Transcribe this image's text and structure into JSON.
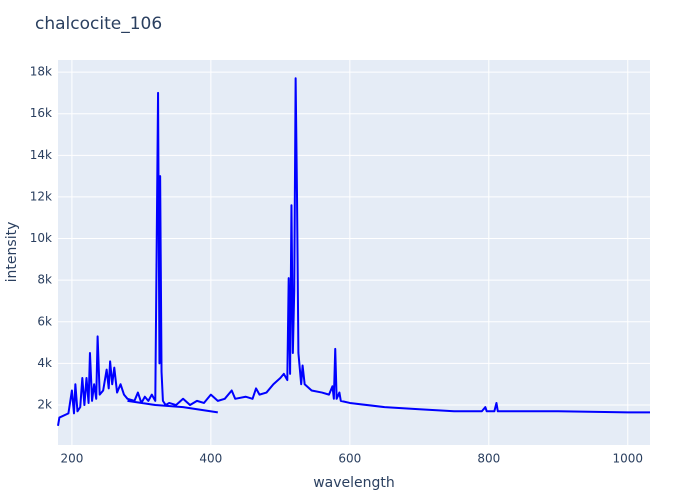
{
  "chart_data": {
    "type": "line",
    "title": "chalcocite_106",
    "x_label": "wavelength",
    "y_label": "intensity",
    "color": "#0000ff",
    "grid": true,
    "xlim": [
      180,
      1032
    ],
    "xticks": [
      200,
      400,
      600,
      800,
      1000
    ],
    "ylim": [
      80,
      18580
    ],
    "yticks": [
      {
        "value": 2000,
        "label": "2k"
      },
      {
        "value": 4000,
        "label": "4k"
      },
      {
        "value": 6000,
        "label": "6k"
      },
      {
        "value": 8000,
        "label": "8k"
      },
      {
        "value": 10000,
        "label": "10k"
      },
      {
        "value": 12000,
        "label": "12k"
      },
      {
        "value": 14000,
        "label": "14k"
      },
      {
        "value": 16000,
        "label": "16k"
      },
      {
        "value": 18000,
        "label": "18k"
      }
    ],
    "x": [
      180,
      182,
      195,
      200,
      203,
      205,
      208,
      212,
      215,
      218,
      221,
      224,
      226,
      229,
      232,
      235,
      237,
      240,
      245,
      250,
      253,
      255,
      258,
      261,
      265,
      270,
      275,
      280,
      290,
      295,
      300,
      305,
      310,
      315,
      320,
      324,
      326,
      327,
      329,
      331,
      335,
      340,
      350,
      360,
      370,
      380,
      390,
      400,
      410,
      420,
      430,
      435,
      450,
      460,
      465,
      470,
      480,
      490,
      500,
      505,
      510,
      512,
      514,
      516,
      518,
      520,
      522,
      524,
      526,
      530,
      532,
      535,
      545,
      560,
      570,
      575,
      577,
      579,
      581,
      585,
      587,
      600,
      650,
      700,
      750,
      790,
      795,
      797,
      808,
      811,
      813,
      900,
      1000,
      1032,
      1032,
      280,
      320,
      360,
      410
    ],
    "values": [
      1000,
      1400,
      1600,
      2700,
      1600,
      3000,
      1700,
      1900,
      3300,
      2000,
      3300,
      2100,
      4500,
      2200,
      3000,
      2300,
      5300,
      2500,
      2700,
      3700,
      2800,
      4100,
      3000,
      3800,
      2600,
      3000,
      2500,
      2300,
      2200,
      2600,
      2100,
      2400,
      2200,
      2500,
      2200,
      17000,
      4000,
      13000,
      3600,
      2200,
      2000,
      2100,
      2000,
      2300,
      2000,
      2200,
      2100,
      2500,
      2200,
      2300,
      2700,
      2300,
      2400,
      2300,
      2800,
      2500,
      2600,
      3000,
      3300,
      3500,
      3200,
      8100,
      3500,
      11600,
      4500,
      7500,
      17700,
      12000,
      4500,
      3000,
      3900,
      3000,
      2700,
      2600,
      2500,
      2900,
      2300,
      4700,
      2300,
      2600,
      2200,
      2100,
      1900,
      1800,
      1700,
      1700,
      1900,
      1700,
      1700,
      2100,
      1700,
      1700,
      1650,
      1650,
      null,
      2200,
      2000,
      1900,
      1650
    ]
  }
}
